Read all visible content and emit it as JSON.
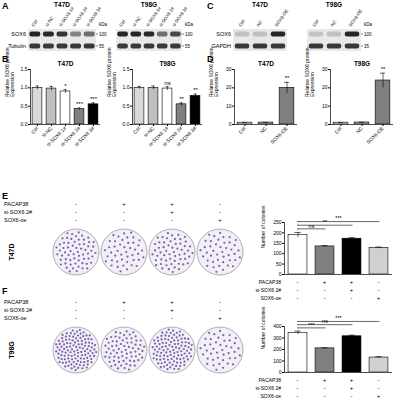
{
  "panel_labels": [
    "A",
    "B",
    "C",
    "D",
    "E",
    "F"
  ],
  "blots": {
    "A": {
      "rows": [
        "SOX6",
        "Tubulin"
      ],
      "marker_unit": "kDa",
      "gels": [
        {
          "title": "T47D",
          "lanes": [
            "Ctrl",
            "si-NC",
            "si-SOX6 1#",
            "si-SOX6 2#",
            "si-SOX6 3#"
          ],
          "markers": [
            100,
            55
          ]
        },
        {
          "title": "T98G",
          "lanes": [
            "Ctrl",
            "si-NC",
            "si-SOX6 1#",
            "si-SOX6 2#",
            "si-SOX6 3#"
          ],
          "markers": [
            100,
            55
          ]
        }
      ]
    },
    "C": {
      "rows": [
        "SOX6",
        "GAPDH"
      ],
      "marker_unit": "kDa",
      "gels": [
        {
          "title": "T47D",
          "lanes": [
            "Ctrl",
            "NC",
            "SOX6-OE"
          ]
        },
        {
          "title": "T98G",
          "lanes": [
            "Ctrl",
            "NC",
            "SOX6-OE"
          ],
          "markers": [
            100,
            35
          ]
        }
      ]
    }
  },
  "chart_data": [
    {
      "type": "bar",
      "title": "T47D",
      "y_label": "Relative SOX6 protein Expression",
      "categories": [
        "Ctrl",
        "si-NC",
        "si-SOX6 1#",
        "si-SOX6 2#",
        "si-SOX6 3#"
      ],
      "values": [
        1.0,
        0.98,
        0.9,
        0.42,
        0.55
      ],
      "errors": [
        0.05,
        0.06,
        0.05,
        0.03,
        0.04
      ],
      "annotations": [
        null,
        null,
        "*",
        "***",
        "***"
      ],
      "colors": [
        "#d9d9d9",
        "#bfbfbf",
        "#ffffff",
        "#7f7f7f",
        "#000000"
      ],
      "ylim": [
        0,
        1.5
      ],
      "yticks": [
        {
          "value": 0,
          "label": "0.0"
        },
        0.5,
        {
          "value": 1,
          "label": "1.0"
        },
        1.5
      ]
    },
    {
      "type": "bar",
      "title": "T98G",
      "y_label": "Relative SOX6 protein Expression",
      "categories": [
        "Ctrl",
        "si-NC",
        "si-SOX6 1#",
        "si-SOX6 2#",
        "si-SOX6 3#"
      ],
      "values": [
        1.0,
        1.0,
        0.98,
        0.55,
        0.78
      ],
      "errors": [
        0.04,
        0.05,
        0.05,
        0.04,
        0.05
      ],
      "annotations": [
        null,
        null,
        "ns",
        "**",
        "**"
      ],
      "colors": [
        "#d9d9d9",
        "#bfbfbf",
        "#ffffff",
        "#7f7f7f",
        "#000000"
      ],
      "ylim": [
        0,
        1.5
      ],
      "yticks": [
        {
          "value": 0,
          "label": "0.0"
        },
        0.5,
        {
          "value": 1,
          "label": "1.0"
        },
        1.5
      ]
    },
    {
      "type": "bar",
      "title": "T47D",
      "y_label": "Relative SOX6 protein Expression",
      "categories": [
        "Ctrl",
        "NC",
        "SOX6-OE"
      ],
      "values": [
        1,
        1.05,
        20
      ],
      "errors": [
        0.1,
        0.1,
        3
      ],
      "annotations": [
        null,
        null,
        "**"
      ],
      "colors": [
        "#d9d9d9",
        "#a6a6a6",
        "#7f7f7f"
      ],
      "ylim": [
        0,
        30
      ],
      "yticks": [
        0,
        10,
        20,
        30
      ]
    },
    {
      "type": "bar",
      "title": "T98G",
      "y_label": "Relative SOX6 protein Expression",
      "categories": [
        "Ctrl",
        "NC",
        "SOX6-OE"
      ],
      "values": [
        1,
        1.1,
        24
      ],
      "errors": [
        0.1,
        0.1,
        4
      ],
      "annotations": [
        null,
        null,
        "**"
      ],
      "colors": [
        "#d9d9d9",
        "#a6a6a6",
        "#7f7f7f"
      ],
      "ylim": [
        0,
        30
      ],
      "yticks": [
        0,
        10,
        20,
        30
      ]
    },
    {
      "type": "bar",
      "title": "T47D",
      "y_label": "Number of colonies",
      "categories": [
        null,
        null,
        null,
        null
      ],
      "tick_labels": "y",
      "values": [
        190,
        135,
        172,
        128
      ],
      "errors": [
        12,
        4,
        5,
        4
      ],
      "colors": [
        "#ffffff",
        "#808080",
        "#000000",
        "#d0d0d0"
      ],
      "comparisons": [
        {
          "groups": [
            0,
            1
          ],
          "label": "ns"
        },
        {
          "groups": [
            0,
            2
          ],
          "label": "**"
        },
        {
          "groups": [
            0,
            3
          ],
          "label": "***"
        }
      ],
      "conditions": [
        {
          "name": "PACAP38",
          "signs": [
            "-",
            "+",
            "+",
            "-"
          ]
        },
        {
          "name": "si-SOX6 2#",
          "signs": [
            "-",
            "-",
            "+",
            "-"
          ]
        },
        {
          "name": "SOX6-oe",
          "signs": [
            "-",
            "-",
            "-",
            "+"
          ]
        }
      ],
      "ylim": [
        0,
        250
      ],
      "yticks": [
        0,
        50,
        100,
        150,
        200,
        250
      ]
    },
    {
      "type": "bar",
      "title": "T98G",
      "y_label": "Number of colonies",
      "categories": [
        null,
        null,
        null,
        null
      ],
      "tick_labels": "y",
      "values": [
        345,
        210,
        315,
        130
      ],
      "errors": [
        15,
        5,
        10,
        8
      ],
      "colors": [
        "#ffffff",
        "#808080",
        "#000000",
        "#d0d0d0"
      ],
      "comparisons": [
        {
          "groups": [
            0,
            1
          ],
          "label": "***"
        },
        {
          "groups": [
            0,
            2
          ],
          "label": "ns"
        },
        {
          "groups": [
            0,
            3
          ],
          "label": "***"
        }
      ],
      "conditions": [
        {
          "name": "PACAP38",
          "signs": [
            "-",
            "+",
            "+",
            "-"
          ]
        },
        {
          "name": "si-SOX6 2#",
          "signs": [
            "-",
            "-",
            "+",
            "-"
          ]
        },
        {
          "name": "SOX6-oe",
          "signs": [
            "-",
            "-",
            "-",
            "+"
          ]
        }
      ],
      "ylim": [
        0,
        400
      ],
      "yticks": [
        0,
        100,
        200,
        300,
        400
      ]
    }
  ]
}
